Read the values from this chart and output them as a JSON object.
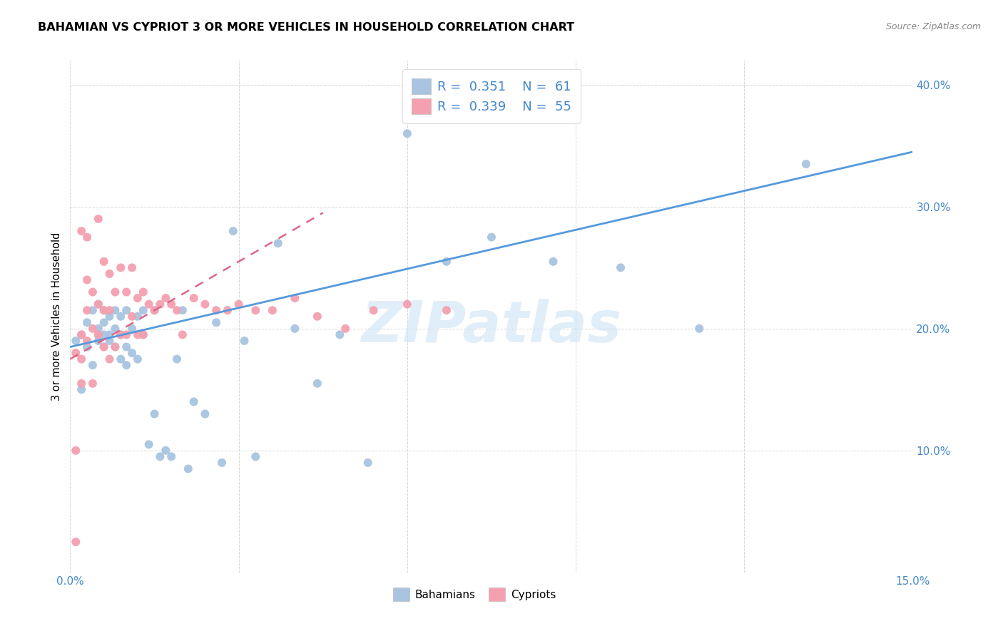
{
  "title": "BAHAMIAN VS CYPRIOT 3 OR MORE VEHICLES IN HOUSEHOLD CORRELATION CHART",
  "source": "Source: ZipAtlas.com",
  "ylabel": "3 or more Vehicles in Household",
  "xlim": [
    0.0,
    0.15
  ],
  "ylim": [
    0.0,
    0.42
  ],
  "xticks": [
    0.0,
    0.03,
    0.06,
    0.09,
    0.12,
    0.15
  ],
  "xtick_labels": [
    "0.0%",
    "",
    "",
    "",
    "",
    "15.0%"
  ],
  "yticks": [
    0.0,
    0.1,
    0.2,
    0.3,
    0.4
  ],
  "ytick_labels": [
    "",
    "10.0%",
    "20.0%",
    "30.0%",
    "40.0%"
  ],
  "bahamian_color": "#a8c4e0",
  "cypriot_color": "#f4a0b0",
  "bahamian_line_color": "#5599dd",
  "cypriot_line_color": "#dd6688",
  "watermark": "ZIPatlas",
  "bahamians_x": [
    0.001,
    0.002,
    0.002,
    0.003,
    0.003,
    0.004,
    0.004,
    0.005,
    0.005,
    0.005,
    0.005,
    0.006,
    0.006,
    0.006,
    0.006,
    0.007,
    0.007,
    0.007,
    0.008,
    0.008,
    0.008,
    0.009,
    0.009,
    0.009,
    0.01,
    0.01,
    0.01,
    0.011,
    0.011,
    0.012,
    0.012,
    0.013,
    0.013,
    0.014,
    0.015,
    0.015,
    0.016,
    0.017,
    0.018,
    0.019,
    0.02,
    0.021,
    0.022,
    0.024,
    0.026,
    0.027,
    0.029,
    0.031,
    0.033,
    0.037,
    0.04,
    0.044,
    0.048,
    0.053,
    0.06,
    0.067,
    0.075,
    0.086,
    0.098,
    0.112,
    0.131
  ],
  "bahamians_y": [
    0.19,
    0.15,
    0.195,
    0.185,
    0.205,
    0.17,
    0.215,
    0.19,
    0.195,
    0.2,
    0.22,
    0.185,
    0.195,
    0.205,
    0.215,
    0.19,
    0.195,
    0.21,
    0.185,
    0.2,
    0.215,
    0.175,
    0.195,
    0.21,
    0.17,
    0.185,
    0.215,
    0.18,
    0.2,
    0.175,
    0.21,
    0.195,
    0.215,
    0.105,
    0.13,
    0.215,
    0.095,
    0.1,
    0.095,
    0.175,
    0.215,
    0.085,
    0.14,
    0.13,
    0.205,
    0.09,
    0.28,
    0.19,
    0.095,
    0.27,
    0.2,
    0.155,
    0.195,
    0.09,
    0.36,
    0.255,
    0.275,
    0.255,
    0.25,
    0.2,
    0.335
  ],
  "cypriots_x": [
    0.001,
    0.001,
    0.001,
    0.002,
    0.002,
    0.002,
    0.002,
    0.003,
    0.003,
    0.003,
    0.003,
    0.004,
    0.004,
    0.004,
    0.005,
    0.005,
    0.005,
    0.006,
    0.006,
    0.006,
    0.007,
    0.007,
    0.007,
    0.008,
    0.008,
    0.009,
    0.009,
    0.01,
    0.01,
    0.011,
    0.011,
    0.012,
    0.012,
    0.013,
    0.013,
    0.014,
    0.015,
    0.016,
    0.017,
    0.018,
    0.019,
    0.02,
    0.022,
    0.024,
    0.026,
    0.028,
    0.03,
    0.033,
    0.036,
    0.04,
    0.044,
    0.049,
    0.054,
    0.06,
    0.067
  ],
  "cypriots_y": [
    0.025,
    0.1,
    0.18,
    0.155,
    0.175,
    0.195,
    0.28,
    0.19,
    0.215,
    0.24,
    0.275,
    0.155,
    0.2,
    0.23,
    0.195,
    0.22,
    0.29,
    0.185,
    0.215,
    0.255,
    0.175,
    0.215,
    0.245,
    0.185,
    0.23,
    0.195,
    0.25,
    0.195,
    0.23,
    0.21,
    0.25,
    0.195,
    0.225,
    0.195,
    0.23,
    0.22,
    0.215,
    0.22,
    0.225,
    0.22,
    0.215,
    0.195,
    0.225,
    0.22,
    0.215,
    0.215,
    0.22,
    0.215,
    0.215,
    0.225,
    0.21,
    0.2,
    0.215,
    0.22,
    0.215
  ],
  "bah_trendline_x": [
    0.0,
    0.15
  ],
  "bah_trendline_y": [
    0.185,
    0.345
  ],
  "cyp_trendline_x": [
    0.0,
    0.045
  ],
  "cyp_trendline_y": [
    0.175,
    0.295
  ]
}
